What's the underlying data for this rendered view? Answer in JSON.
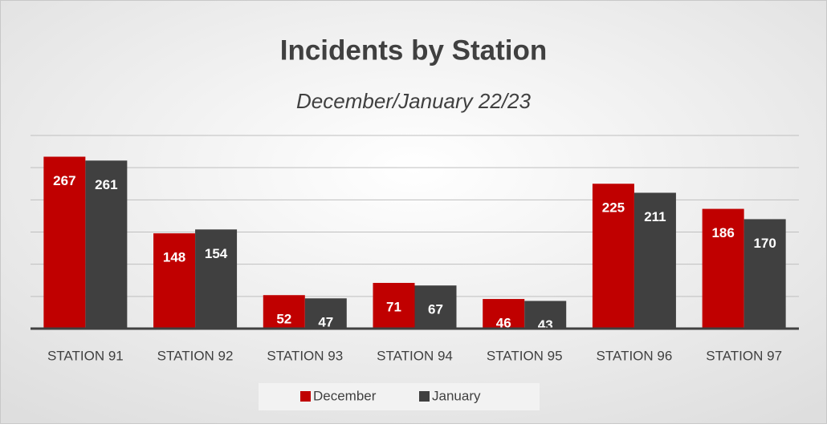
{
  "chart_data": {
    "type": "bar",
    "title": "Incidents by Station",
    "subtitle": "December/January 22/23",
    "categories": [
      "STATION 91",
      "STATION 92",
      "STATION 93",
      "STATION 94",
      "STATION 95",
      "STATION 96",
      "STATION 97"
    ],
    "series": [
      {
        "name": "December",
        "color": "#c00000",
        "values": [
          267,
          148,
          52,
          71,
          46,
          225,
          186
        ]
      },
      {
        "name": "January",
        "color": "#404040",
        "values": [
          261,
          154,
          47,
          67,
          43,
          211,
          170
        ]
      }
    ],
    "ylim": [
      0,
      300
    ],
    "yticks": [
      0,
      50,
      100,
      150,
      200,
      250,
      300
    ],
    "grid": true,
    "legend": "bottom"
  }
}
